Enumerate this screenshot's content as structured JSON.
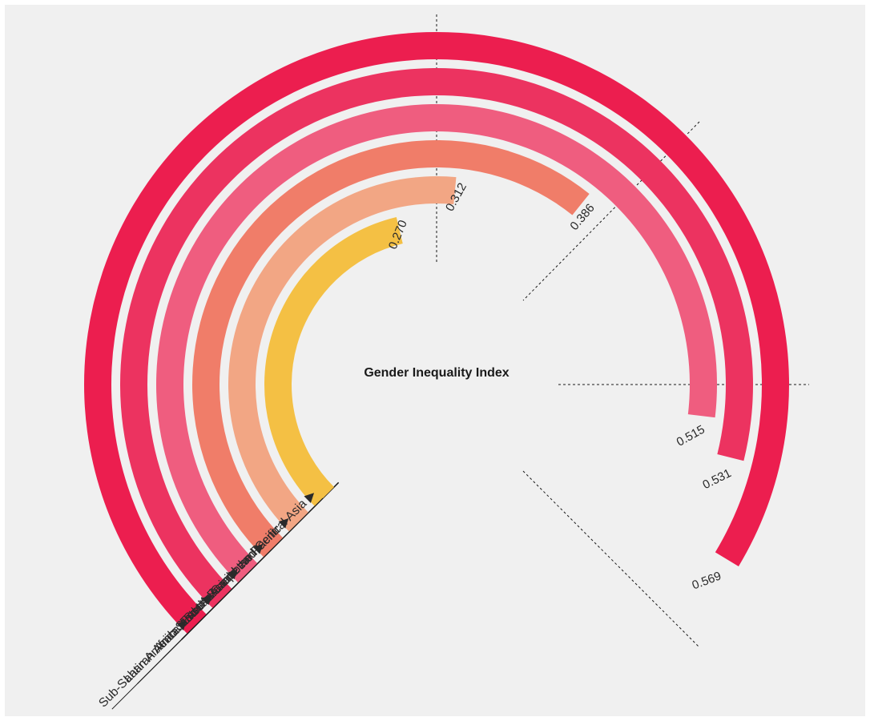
{
  "chart_data": {
    "type": "radial-bar",
    "title": "Gender Inequality Index",
    "scale_max": 0.6,
    "series": [
      {
        "name": "Sub-Saharan Africa",
        "value": 0.569,
        "value_label": "0.569",
        "label": "Sub-Saharan Africa ▶",
        "color": "#ec1e4f"
      },
      {
        "name": "Arab States",
        "value": 0.531,
        "value_label": "0.531",
        "label": "Arab States ▶",
        "color": "#ec3360"
      },
      {
        "name": "South Asia",
        "value": 0.515,
        "value_label": "0.515",
        "label": "South Asia ▶",
        "color": "#ef5d7f"
      },
      {
        "name": "Latin America and the Caribbean",
        "value": 0.386,
        "value_label": "0.386",
        "label": "Latin America and the Caribbean ▶",
        "color": "#f07d69"
      },
      {
        "name": "East Asia and the Pacific",
        "value": 0.312,
        "value_label": "0.312",
        "label": "East Asia and the Pacific ▶",
        "color": "#f2a684"
      },
      {
        "name": "Europe and Central Asia",
        "value": 0.27,
        "value_label": "0.270",
        "label": "Europe and Central Asia ▶",
        "color": "#f4c044"
      }
    ]
  }
}
